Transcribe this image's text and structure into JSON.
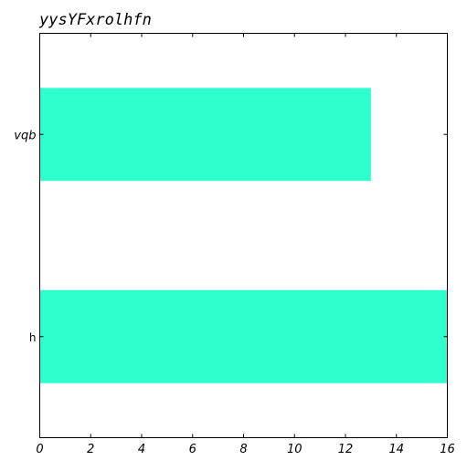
{
  "chart_data": {
    "type": "bar",
    "orientation": "horizontal",
    "title": "yysYFxrolhfn",
    "categories": [
      "vqb",
      "h"
    ],
    "values": [
      13,
      16
    ],
    "xlabel": "",
    "ylabel": "",
    "xlim": [
      0,
      16
    ],
    "xticks": [
      "0",
      "2",
      "4",
      "6",
      "8",
      "10",
      "12",
      "14",
      "16"
    ],
    "grid": false,
    "bar_color": "#2effcc"
  }
}
